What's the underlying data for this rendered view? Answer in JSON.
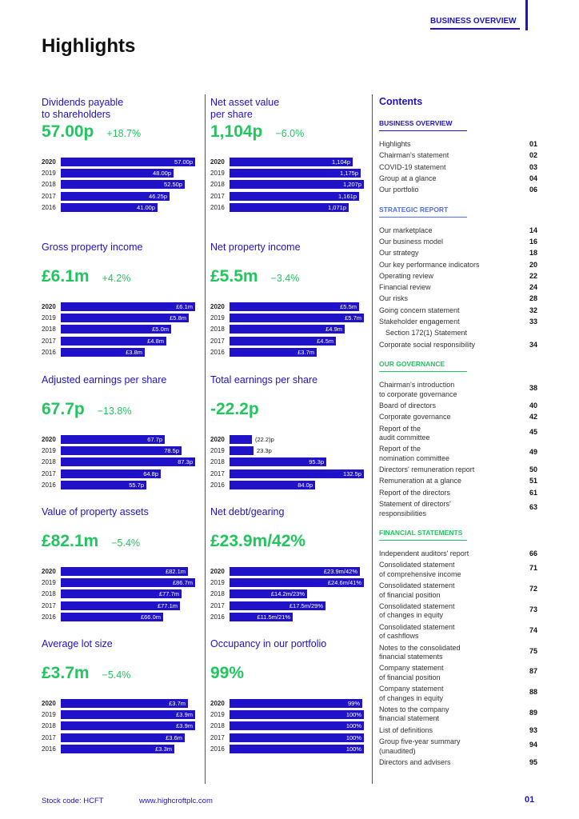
{
  "header": {
    "section_tag": "BUSINESS OVERVIEW",
    "page_title": "Highlights"
  },
  "accent_color": "#1f12c8",
  "positive_color": "#22c55e",
  "kpis": [
    {
      "label": "Dividends payable\nto shareholders",
      "value": "57.00p",
      "change": "+18.7%",
      "max": 57,
      "bars": [
        {
          "year": "2020",
          "label": "57.00p",
          "value": 57.0
        },
        {
          "year": "2019",
          "label": "48.00p",
          "value": 48.0
        },
        {
          "year": "2018",
          "label": "52.50p",
          "value": 52.5
        },
        {
          "year": "2017",
          "label": "46.25p",
          "value": 46.25
        },
        {
          "year": "2016",
          "label": "41.00p",
          "value": 41.0
        }
      ]
    },
    {
      "label": "Net asset value\nper share",
      "value": "1,104p",
      "change": "−6.0%",
      "max": 1207,
      "bars": [
        {
          "year": "2020",
          "label": "1,104p",
          "value": 1104
        },
        {
          "year": "2019",
          "label": "1,175p",
          "value": 1175
        },
        {
          "year": "2018",
          "label": "1,207p",
          "value": 1207
        },
        {
          "year": "2017",
          "label": "1,161p",
          "value": 1161
        },
        {
          "year": "2016",
          "label": "1,071p",
          "value": 1071
        }
      ]
    },
    {
      "label": "Gross property income",
      "value": "£6.1m",
      "change": "+4.2%",
      "max": 6.1,
      "bars": [
        {
          "year": "2020",
          "label": "£6.1m",
          "value": 6.1
        },
        {
          "year": "2019",
          "label": "£5.8m",
          "value": 5.8
        },
        {
          "year": "2018",
          "label": "£5.0m",
          "value": 5.0
        },
        {
          "year": "2017",
          "label": "£4.8m",
          "value": 4.8
        },
        {
          "year": "2016",
          "label": "£3.8m",
          "value": 3.8
        }
      ]
    },
    {
      "label": "Net property income",
      "value": "£5.5m",
      "change": "−3.4%",
      "max": 5.7,
      "bars": [
        {
          "year": "2020",
          "label": "£5.5m",
          "value": 5.5
        },
        {
          "year": "2019",
          "label": "£5.7m",
          "value": 5.7
        },
        {
          "year": "2018",
          "label": "£4.9m",
          "value": 4.9
        },
        {
          "year": "2017",
          "label": "£4.5m",
          "value": 4.5
        },
        {
          "year": "2016",
          "label": "£3.7m",
          "value": 3.7
        }
      ]
    },
    {
      "label": "Adjusted earnings per share",
      "value": "67.7p",
      "change": "−13.8%",
      "max": 87.3,
      "bars": [
        {
          "year": "2020",
          "label": "67.7p",
          "value": 67.7
        },
        {
          "year": "2019",
          "label": "78.5p",
          "value": 78.5
        },
        {
          "year": "2018",
          "label": "87.3p",
          "value": 87.3
        },
        {
          "year": "2017",
          "label": "64.8p",
          "value": 64.8
        },
        {
          "year": "2016",
          "label": "55.7p",
          "value": 55.7
        }
      ]
    },
    {
      "label": "Total earnings per share",
      "value": "-22.2p",
      "change": "",
      "max": 132.5,
      "label_outside": true,
      "bars": [
        {
          "year": "2020",
          "label": "(22.2)p",
          "value": 22.2
        },
        {
          "year": "2019",
          "label": "23.3p",
          "value": 23.3
        },
        {
          "year": "2018",
          "label": "95.3p",
          "value": 95.3
        },
        {
          "year": "2017",
          "label": "132.5p",
          "value": 132.5
        },
        {
          "year": "2016",
          "label": "84.0p",
          "value": 84.0
        }
      ]
    },
    {
      "label": "Value of property assets",
      "value": "£82.1m",
      "change": "−5.4%",
      "max": 86.7,
      "bars": [
        {
          "year": "2020",
          "label": "£82.1m",
          "value": 82.1
        },
        {
          "year": "2019",
          "label": "£86.7m",
          "value": 86.7
        },
        {
          "year": "2018",
          "label": "£77.7m",
          "value": 77.7
        },
        {
          "year": "2017",
          "label": "£77.1m",
          "value": 77.1
        },
        {
          "year": "2016",
          "label": "£66.0m",
          "value": 66.0
        }
      ]
    },
    {
      "label": "Net debt/gearing",
      "value": "£23.9m/42%",
      "change": "",
      "max": 24.6,
      "bars": [
        {
          "year": "2020",
          "label": "£23.9m/42%",
          "value": 23.9
        },
        {
          "year": "2019",
          "label": "£24.6m/41%",
          "value": 24.6
        },
        {
          "year": "2018",
          "label": "£14.2m/23%",
          "value": 14.2
        },
        {
          "year": "2017",
          "label": "£17.5m/29%",
          "value": 17.5
        },
        {
          "year": "2016",
          "label": "£11.5m/21%",
          "value": 11.5
        }
      ]
    },
    {
      "label": "Average lot size",
      "value": "£3.7m",
      "change": "−5.4%",
      "max": 3.9,
      "bars": [
        {
          "year": "2020",
          "label": "£3.7m",
          "value": 3.7
        },
        {
          "year": "2019",
          "label": "£3.9m",
          "value": 3.9
        },
        {
          "year": "2018",
          "label": "£3.9m",
          "value": 3.9
        },
        {
          "year": "2017",
          "label": "£3.6m",
          "value": 3.6
        },
        {
          "year": "2016",
          "label": "£3.3m",
          "value": 3.3
        }
      ]
    },
    {
      "label": "Occupancy in our portfolio",
      "value": "99%",
      "change": "",
      "max": 100,
      "bars": [
        {
          "year": "2020",
          "label": "99%",
          "value": 99
        },
        {
          "year": "2019",
          "label": "100%",
          "value": 100
        },
        {
          "year": "2018",
          "label": "100%",
          "value": 100
        },
        {
          "year": "2017",
          "label": "100%",
          "value": 100
        },
        {
          "year": "2016",
          "label": "100%",
          "value": 100
        }
      ]
    }
  ],
  "contents": {
    "title": "Contents",
    "sections": [
      {
        "heading": "BUSINESS OVERVIEW",
        "style": "",
        "items": [
          {
            "text": "Highlights",
            "page": "01"
          },
          {
            "text": "Chairman's statement",
            "page": "02"
          },
          {
            "text": "COVID-19 statement",
            "page": "03"
          },
          {
            "text": "Group at a glance",
            "page": "04"
          },
          {
            "text": "Our portfolio",
            "page": "06"
          }
        ]
      },
      {
        "heading": "STRATEGIC REPORT",
        "style": "muted",
        "items": [
          {
            "text": "Our marketplace",
            "page": "14"
          },
          {
            "text": "Our business model",
            "page": "16"
          },
          {
            "text": "Our strategy",
            "page": "18"
          },
          {
            "text": "Our key performance indicators",
            "page": "20"
          },
          {
            "text": "Operating review",
            "page": "22"
          },
          {
            "text": "Financial review",
            "page": "24"
          },
          {
            "text": "Our risks",
            "page": "28"
          },
          {
            "text": "Going concern statement",
            "page": "32"
          },
          {
            "text": "Stakeholder engagement",
            "page": "33"
          },
          {
            "text": "Section 172(1) Statement",
            "page": "",
            "indent": true
          },
          {
            "text": "Corporate social responsibility",
            "page": "34"
          }
        ]
      },
      {
        "heading": "OUR GOVERNANCE",
        "style": "green",
        "items": [
          {
            "text": "Chairman's introduction\nto corporate governance",
            "page": "38"
          },
          {
            "text": "Board of directors",
            "page": "40"
          },
          {
            "text": "Corporate governance",
            "page": "42"
          },
          {
            "text": "Report of the\naudit committee",
            "page": "45"
          },
          {
            "text": "Report of the\nnomination committee",
            "page": "49"
          },
          {
            "text": "Directors' remuneration report",
            "page": "50"
          },
          {
            "text": "Remuneration at a glance",
            "page": "51"
          },
          {
            "text": "Report of the directors",
            "page": "61"
          },
          {
            "text": "Statement of directors'\nresponsibilities",
            "page": "63"
          }
        ]
      },
      {
        "heading": "FINANCIAL STATEMENTS",
        "style": "green",
        "items": [
          {
            "text": "Independent auditors' report",
            "page": "66"
          },
          {
            "text": "Consolidated statement\nof comprehensive income",
            "page": "71"
          },
          {
            "text": "Consolidated statement\nof financial position",
            "page": "72"
          },
          {
            "text": "Consolidated statement\nof changes in equity",
            "page": "73"
          },
          {
            "text": "Consolidated statement\nof cashflows",
            "page": "74"
          },
          {
            "text": "Notes to the consolidated\nfinancial statements",
            "page": "75"
          },
          {
            "text": "Company statement\nof financial position",
            "page": "87"
          },
          {
            "text": "Company statement\nof changes in equity",
            "page": "88"
          },
          {
            "text": "Notes to the company\nfinancial statement",
            "page": "89"
          },
          {
            "text": "List of definitions",
            "page": "93"
          },
          {
            "text": "Group five-year summary\n(unaudited)",
            "page": "94"
          },
          {
            "text": "Directors and advisers",
            "page": "95"
          }
        ]
      }
    ]
  },
  "footer": {
    "stock_code": "Stock code: HCFT",
    "url": "www.highcroftplc.com",
    "page_number": "01"
  }
}
